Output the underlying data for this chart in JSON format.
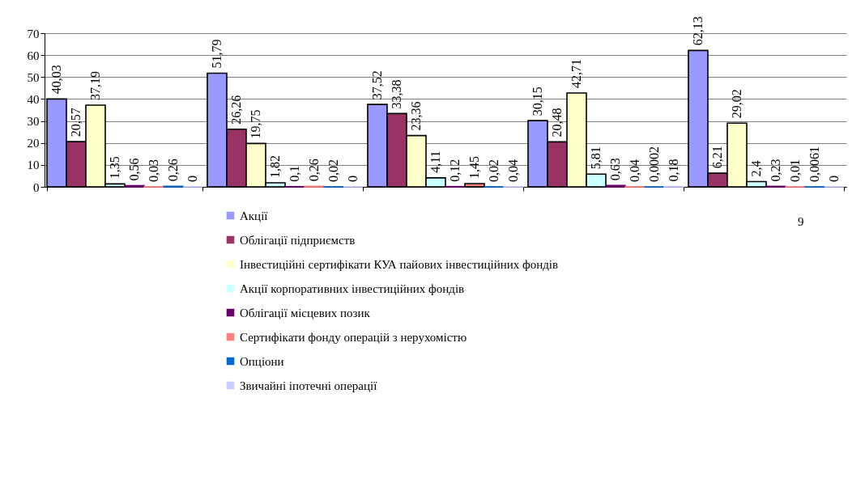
{
  "chart_data": {
    "type": "bar",
    "categories": [
      null,
      null,
      null,
      null,
      null
    ],
    "series": [
      {
        "name": "Акції",
        "color": "#9999ff",
        "values": [
          40.03,
          51.79,
          37.52,
          30.15,
          62.13
        ],
        "value_labels": [
          "40,03",
          "51,79",
          "37,52",
          "30,15",
          "62,13"
        ]
      },
      {
        "name": "Облігації підприємств",
        "color": "#993366",
        "values": [
          20.57,
          26.26,
          33.38,
          20.48,
          6.21
        ],
        "value_labels": [
          "20,57",
          "26,26",
          "33,38",
          "20,48",
          "6,21"
        ]
      },
      {
        "name": "Інвестиційні сертифікати КУА пайових інвестиційних фондів",
        "color": "#ffffcc",
        "values": [
          37.19,
          19.75,
          23.36,
          42.71,
          29.02
        ],
        "value_labels": [
          "37,19",
          "19,75",
          "23,36",
          "42,71",
          "29,02"
        ]
      },
      {
        "name": "Акції корпоративних інвестиційних фондів",
        "color": "#ccffff",
        "values": [
          1.35,
          1.82,
          4.11,
          5.81,
          2.4
        ],
        "value_labels": [
          "1,35",
          "1,82",
          "4,11",
          "5,81",
          "2,4"
        ]
      },
      {
        "name": "Облігації місцевих позик",
        "color": "#660066",
        "values": [
          0.56,
          0.1,
          0.12,
          0.63,
          0.23
        ],
        "value_labels": [
          "0,56",
          "0,1",
          "0,12",
          "0,63",
          "0,23"
        ]
      },
      {
        "name": "Сертифікати фонду операцій з нерухомістю",
        "color": "#ff8080",
        "values": [
          0.03,
          0.26,
          1.45,
          0.04,
          0.01
        ],
        "value_labels": [
          "0,03",
          "0,26",
          "1,45",
          "0,04",
          "0,01"
        ]
      },
      {
        "name": "Опціони",
        "color": "#0066cc",
        "values": [
          0.26,
          0.02,
          0.02,
          0.0002,
          0.0061
        ],
        "value_labels": [
          "0,26",
          "0,02",
          "0,02",
          "0,0002",
          "0,0061"
        ]
      },
      {
        "name": "Звичайні іпотечні операції",
        "color": "#ccccff",
        "values": [
          0,
          0,
          0.04,
          0.18,
          0
        ],
        "value_labels": [
          "0",
          "0",
          "0,04",
          "0,18",
          "0"
        ]
      }
    ],
    "ylim": [
      0,
      70
    ],
    "yticks": [
      0,
      10,
      20,
      30,
      40,
      50,
      60,
      70
    ],
    "grid": "y",
    "legend": "bottom",
    "tick_labels": "y",
    "annotations": [
      "9"
    ]
  }
}
